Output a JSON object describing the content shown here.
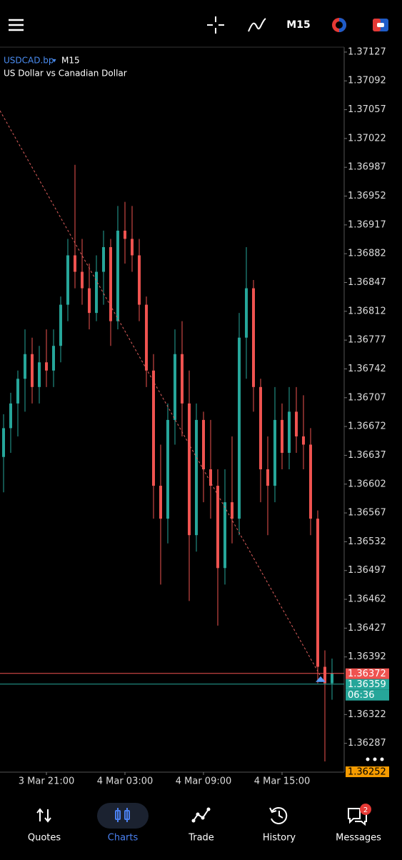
{
  "toolbar": {
    "timeframe": "M15"
  },
  "chart_data": {
    "type": "candlestick",
    "symbol": "USDCAD.bp",
    "period": "M15",
    "description": "US Dollar vs Canadian Dollar",
    "up_color": "#26a69a",
    "down_color": "#ef5350",
    "categories": [
      null,
      null,
      null,
      null,
      null,
      null,
      "3 Mar 21:00",
      null,
      null,
      null,
      null,
      null,
      null,
      null,
      null,
      null,
      null,
      "4 Mar 03:00",
      null,
      null,
      null,
      null,
      null,
      null,
      null,
      null,
      null,
      null,
      "4 Mar 09:00",
      null,
      null,
      null,
      null,
      null,
      null,
      null,
      null,
      null,
      null,
      "4 Mar 15:00",
      null,
      null,
      null,
      null,
      null,
      null,
      null
    ],
    "open": [
      1.36635,
      1.3667,
      1.367,
      1.3673,
      1.3676,
      1.3672,
      1.3675,
      1.3674,
      1.3677,
      1.3682,
      1.3688,
      1.3686,
      1.3684,
      1.3681,
      1.3686,
      1.3689,
      1.368,
      1.3691,
      1.369,
      1.3688,
      1.3682,
      1.3674,
      1.366,
      1.3656,
      1.3668,
      1.3676,
      1.367,
      1.3654,
      1.3668,
      1.3662,
      1.366,
      1.365,
      1.3658,
      1.3656,
      1.3678,
      1.3684,
      1.3672,
      1.3662,
      1.366,
      1.3668,
      1.3664,
      1.3669,
      1.3666,
      1.3665,
      1.3656,
      1.3638,
      1.3636
    ],
    "high": [
      1.36687,
      1.36713,
      1.3674,
      1.3679,
      1.3678,
      1.3677,
      1.3679,
      1.3679,
      1.3683,
      1.369,
      1.3699,
      1.369,
      1.3687,
      1.3688,
      1.3691,
      1.369,
      1.3694,
      1.36945,
      1.3694,
      1.369,
      1.3683,
      1.3676,
      1.3665,
      1.367,
      1.3679,
      1.368,
      1.3674,
      1.367,
      1.3669,
      1.3668,
      1.3662,
      1.3662,
      1.3666,
      1.3681,
      1.3689,
      1.3685,
      1.3673,
      1.3666,
      1.3672,
      1.367,
      1.3672,
      1.3672,
      1.3671,
      1.3667,
      1.3657,
      1.364,
      1.3639
    ],
    "low": [
      1.36592,
      1.3664,
      1.3666,
      1.3669,
      1.367,
      1.367,
      1.3672,
      1.3672,
      1.3675,
      1.368,
      1.3684,
      1.3682,
      1.3679,
      1.368,
      1.3682,
      1.3677,
      1.3679,
      1.3687,
      1.3686,
      1.368,
      1.3672,
      1.3656,
      1.3648,
      1.3653,
      1.3665,
      1.3666,
      1.3646,
      1.3652,
      1.3658,
      1.3656,
      1.3643,
      1.3648,
      1.3653,
      1.3654,
      1.3673,
      1.3669,
      1.3658,
      1.3654,
      1.3658,
      1.3662,
      1.3662,
      1.3664,
      1.3662,
      1.3654,
      1.3636,
      1.36265,
      1.3634
    ],
    "close": [
      1.3667,
      1.367,
      1.3673,
      1.3676,
      1.3672,
      1.3675,
      1.3674,
      1.3677,
      1.3682,
      1.3688,
      1.3686,
      1.3684,
      1.3681,
      1.3686,
      1.3689,
      1.368,
      1.3691,
      1.369,
      1.3688,
      1.3682,
      1.3674,
      1.366,
      1.3656,
      1.3668,
      1.3676,
      1.367,
      1.3654,
      1.3668,
      1.3662,
      1.366,
      1.365,
      1.3658,
      1.3656,
      1.3678,
      1.3684,
      1.3672,
      1.3662,
      1.366,
      1.3668,
      1.3664,
      1.3669,
      1.3666,
      1.3665,
      1.3656,
      1.3638,
      1.3636,
      1.36372
    ],
    "ylim": [
      1.36252,
      1.37133
    ],
    "yticks": [
      1.37127,
      1.37092,
      1.37057,
      1.37022,
      1.36987,
      1.36952,
      1.36917,
      1.36882,
      1.36847,
      1.36812,
      1.36777,
      1.36742,
      1.36707,
      1.36672,
      1.36637,
      1.36602,
      1.36567,
      1.36532,
      1.36497,
      1.36462,
      1.36427,
      1.36392,
      1.36322,
      1.36287
    ],
    "price_lines": [
      {
        "name": "bid",
        "value": 1.36372,
        "color": "#ef5350"
      },
      {
        "name": "ask",
        "value": 1.36359,
        "color": "#26a69a"
      },
      {
        "name": "low-marker",
        "value": 1.36252,
        "color": "#f59b00"
      }
    ],
    "countdown": "06:36"
  },
  "nav": {
    "items": [
      "Quotes",
      "Charts",
      "Trade",
      "History",
      "Messages"
    ],
    "active": "Charts",
    "badge": 2
  }
}
